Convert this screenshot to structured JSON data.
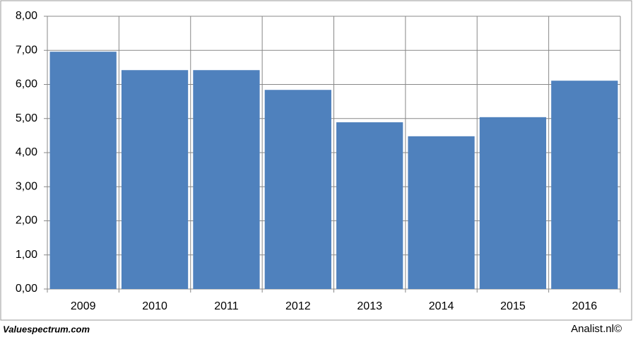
{
  "chart_data": {
    "type": "bar",
    "categories": [
      "2009",
      "2010",
      "2011",
      "2012",
      "2013",
      "2014",
      "2015",
      "2016"
    ],
    "values": [
      6.96,
      6.42,
      6.42,
      5.84,
      4.89,
      4.48,
      5.04,
      6.11
    ],
    "color": "#4f81bd",
    "ylim": [
      0,
      8
    ],
    "yticks": [
      {
        "value": 0,
        "label": "0,00"
      },
      {
        "value": 1,
        "label": "1,00"
      },
      {
        "value": 2,
        "label": "2,00"
      },
      {
        "value": 3,
        "label": "3,00"
      },
      {
        "value": 4,
        "label": "4,00"
      },
      {
        "value": 5,
        "label": "5,00"
      },
      {
        "value": 6,
        "label": "6,00"
      },
      {
        "value": 7,
        "label": "7,00"
      },
      {
        "value": 8,
        "label": "8,00"
      }
    ],
    "grid": true,
    "footer_left": "Valuespectrum.com",
    "footer_right": "Analist.nl©"
  }
}
